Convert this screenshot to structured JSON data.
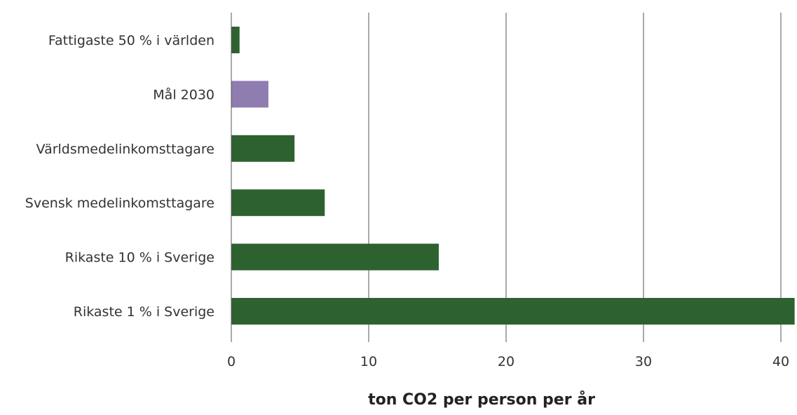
{
  "chart_data": {
    "type": "bar",
    "orientation": "horizontal",
    "title": "",
    "xlabel": "ton CO2 per person per år",
    "ylabel": "",
    "xlim": [
      0,
      40
    ],
    "x_ticks": [
      "0",
      "10",
      "20",
      "30",
      "40"
    ],
    "grid": "vertical",
    "categories": [
      "Fattigaste 50 % i världen",
      "Mål 2030",
      "Världsmedelinkomsttagare",
      "Svensk medelinkomsttagare",
      "Rikaste 10 % i Sverige",
      "Rikaste 1 % i Sverige"
    ],
    "values": [
      0.6,
      2.7,
      4.6,
      6.8,
      15.1,
      41
    ],
    "bar_colors": [
      "#2d6230",
      "#8f7db0",
      "#2d6230",
      "#2d6230",
      "#2d6230",
      "#2d6230"
    ]
  }
}
